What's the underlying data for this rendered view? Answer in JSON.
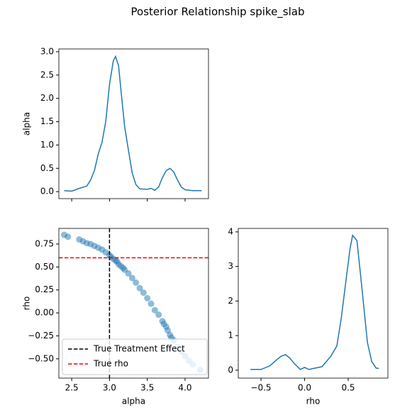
{
  "title": "Posterior Relationship spike_slab",
  "chart_data": [
    {
      "type": "line",
      "ylabel": "alpha",
      "color": "#1f77b4",
      "xlim": [
        2.33,
        4.31
      ],
      "ylim": [
        -0.15,
        3.06
      ],
      "yticks": [
        {
          "value": 0,
          "label": "0.0"
        },
        0.5,
        {
          "value": 1,
          "label": "1.0"
        },
        1.5,
        {
          "value": 2,
          "label": "2.0"
        },
        2.5,
        {
          "value": 3,
          "label": "3.0"
        }
      ],
      "x": [
        2.4,
        2.5,
        2.6,
        2.7,
        2.75,
        2.8,
        2.85,
        2.9,
        2.95,
        3.0,
        3.05,
        3.08,
        3.12,
        3.15,
        3.2,
        3.25,
        3.3,
        3.35,
        3.4,
        3.5,
        3.55,
        3.6,
        3.65,
        3.7,
        3.75,
        3.8,
        3.85,
        3.9,
        3.95,
        4.0,
        4.1,
        4.22
      ],
      "values": [
        0.02,
        0.01,
        0.07,
        0.12,
        0.25,
        0.45,
        0.8,
        1.05,
        1.5,
        2.3,
        2.8,
        2.9,
        2.7,
        2.2,
        1.4,
        0.9,
        0.4,
        0.15,
        0.06,
        0.05,
        0.07,
        0.03,
        0.1,
        0.3,
        0.45,
        0.5,
        0.42,
        0.25,
        0.1,
        0.04,
        0.02,
        0.02
      ]
    },
    {
      "type": "scatter",
      "xlabel": "alpha",
      "ylabel": "rho",
      "color": "#1f77b4",
      "legend": "lower left",
      "xlim": [
        2.33,
        4.31
      ],
      "ylim": [
        -0.71,
        0.92
      ],
      "xticks": [
        2.5,
        {
          "value": 3,
          "label": "3.0"
        },
        3.5,
        {
          "value": 4,
          "label": "4.0"
        }
      ],
      "yticks": [
        {
          "value": -0.5,
          "label": "−0.50"
        },
        {
          "value": -0.25,
          "label": "−0.25"
        },
        {
          "value": 0,
          "label": "0.00"
        },
        0.25,
        {
          "value": 0.5,
          "label": "0.50"
        },
        0.75
      ],
      "x": [
        2.4,
        2.45,
        2.6,
        2.65,
        2.7,
        2.75,
        2.8,
        2.85,
        2.9,
        2.95,
        3.0,
        3.02,
        3.05,
        3.08,
        3.1,
        3.12,
        3.15,
        3.18,
        3.2,
        3.25,
        3.3,
        3.35,
        3.4,
        3.45,
        3.5,
        3.55,
        3.6,
        3.65,
        3.7,
        3.72,
        3.75,
        3.77,
        3.8,
        3.82,
        3.85,
        3.9,
        3.95,
        4.0,
        4.05,
        4.1,
        4.2
      ],
      "y": [
        0.85,
        0.83,
        0.8,
        0.78,
        0.76,
        0.75,
        0.73,
        0.71,
        0.69,
        0.66,
        0.63,
        0.61,
        0.59,
        0.57,
        0.56,
        0.53,
        0.51,
        0.49,
        0.47,
        0.43,
        0.38,
        0.33,
        0.27,
        0.22,
        0.16,
        0.1,
        0.03,
        -0.02,
        -0.09,
        -0.12,
        -0.15,
        -0.19,
        -0.24,
        -0.27,
        -0.3,
        -0.37,
        -0.42,
        -0.47,
        -0.52,
        -0.56,
        -0.62
      ],
      "reference_lines": [
        {
          "name": "True Treatment Effect",
          "color": "#000000",
          "axis": "x",
          "value": 3.0
        },
        {
          "name": "True rho",
          "color": "#ff0000",
          "axis": "y",
          "value": 0.6
        }
      ]
    },
    {
      "type": "line",
      "xlabel": "rho",
      "color": "#1f77b4",
      "xlim": [
        -0.76,
        0.955
      ],
      "ylim": [
        -0.23,
        4.1
      ],
      "xticks": [
        {
          "value": -0.5,
          "label": "−0.5"
        },
        {
          "value": 0,
          "label": "0.0"
        },
        0.5
      ],
      "yticks": [
        0,
        1,
        2,
        3,
        4
      ],
      "x": [
        -0.62,
        -0.5,
        -0.4,
        -0.32,
        -0.27,
        -0.22,
        -0.17,
        -0.12,
        -0.05,
        0.0,
        0.05,
        0.1,
        0.2,
        0.3,
        0.37,
        0.42,
        0.47,
        0.52,
        0.55,
        0.6,
        0.64,
        0.68,
        0.72,
        0.77,
        0.82,
        0.85
      ],
      "values": [
        0.02,
        0.02,
        0.12,
        0.3,
        0.4,
        0.45,
        0.35,
        0.2,
        0.02,
        0.08,
        0.02,
        0.05,
        0.1,
        0.4,
        0.7,
        1.5,
        2.5,
        3.5,
        3.9,
        3.75,
        2.8,
        1.8,
        0.8,
        0.25,
        0.06,
        0.05
      ]
    }
  ]
}
